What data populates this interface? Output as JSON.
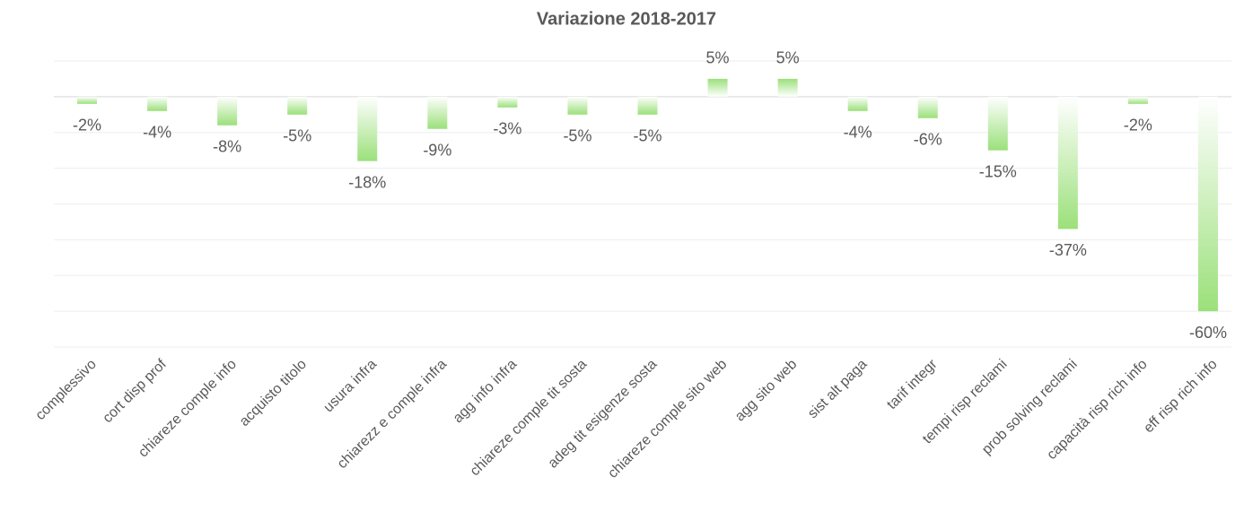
{
  "chart_data": {
    "type": "bar",
    "title": "Variazione 2018-2017",
    "categories": [
      "complessivo",
      "cort disp prof",
      "chiareze comple info",
      "acquisto titolo",
      "usura infra",
      "chiarezz e comple infra",
      "agg info infra",
      "chiareze comple tit sosta",
      "adeg tit esigenze sosta",
      "chiareze comple sito web",
      "agg sito web",
      "sist alt paga",
      "tarif integr",
      "tempi risp reclami",
      "prob solving reclami",
      "capacità risp rich info",
      "eff risp rich info"
    ],
    "values": [
      -2,
      -4,
      -8,
      -5,
      -18,
      -9,
      -3,
      -5,
      -5,
      5,
      5,
      -4,
      -6,
      -15,
      -37,
      -2,
      -60
    ],
    "value_labels": [
      "-2%",
      "-4%",
      "-8%",
      "-5%",
      "-18%",
      "-9%",
      "-3%",
      "-5%",
      "-5%",
      "5%",
      "5%",
      "-4%",
      "-6%",
      "-15%",
      "-37%",
      "-2%",
      "-60%"
    ],
    "color": "#9be07a",
    "ylim": [
      -70,
      10
    ],
    "yticks": [
      -70,
      -60,
      -50,
      -40,
      -30,
      -20,
      -10,
      0,
      10
    ],
    "grid": true
  }
}
